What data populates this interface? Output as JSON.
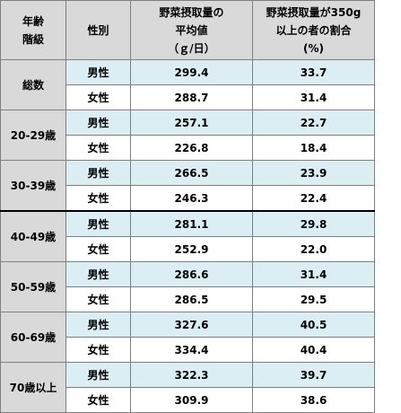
{
  "header": {
    "age_group": [
      "年齢",
      "階級"
    ],
    "sex": "性別",
    "avg_intake": [
      "野菜摂取量の",
      "平均値",
      "（ｇ/日）"
    ],
    "pct_350": [
      "野菜摂取量が350g",
      "以上の者の割合",
      "(%)"
    ]
  },
  "sex_labels": {
    "male": "男性",
    "female": "女性"
  },
  "rows": [
    {
      "group": "総数",
      "male": {
        "avg": "299.4",
        "pct": "33.7"
      },
      "female": {
        "avg": "288.7",
        "pct": "31.4"
      }
    },
    {
      "group": "20-29歳",
      "male": {
        "avg": "257.1",
        "pct": "22.7"
      },
      "female": {
        "avg": "226.8",
        "pct": "18.4"
      }
    },
    {
      "group": "30-39歳",
      "male": {
        "avg": "266.5",
        "pct": "23.9"
      },
      "female": {
        "avg": "246.3",
        "pct": "22.4"
      }
    },
    {
      "group": "40-49歳",
      "male": {
        "avg": "281.1",
        "pct": "29.8"
      },
      "female": {
        "avg": "252.9",
        "pct": "22.0"
      }
    },
    {
      "group": "50-59歳",
      "male": {
        "avg": "286.6",
        "pct": "31.4"
      },
      "female": {
        "avg": "286.5",
        "pct": "29.5"
      }
    },
    {
      "group": "60-69歳",
      "male": {
        "avg": "327.6",
        "pct": "40.5"
      },
      "female": {
        "avg": "334.4",
        "pct": "40.4"
      }
    },
    {
      "group": "70歳以上",
      "male": {
        "avg": "322.3",
        "pct": "39.7"
      },
      "female": {
        "avg": "309.9",
        "pct": "38.6"
      }
    }
  ],
  "colors": {
    "header_bg": "#d9d9d9",
    "male_bg": "#daeef3",
    "female_bg": "#ffffff",
    "grid": "#7f7f7f"
  }
}
